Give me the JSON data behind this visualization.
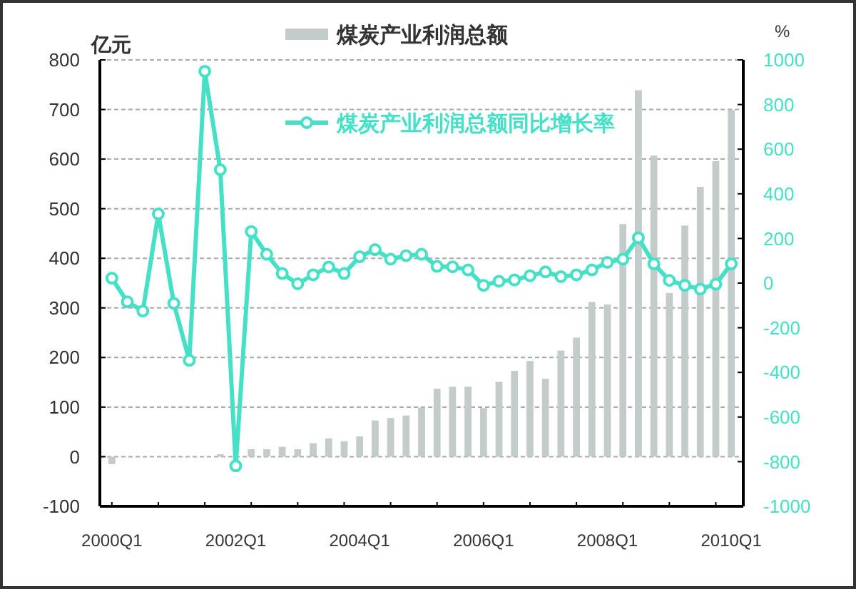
{
  "chart_data": {
    "type": "bar",
    "ylabel": "亿元",
    "y2label": "%",
    "categories": [
      "2000Q1",
      null,
      null,
      null,
      null,
      null,
      null,
      null,
      "2002Q1",
      null,
      null,
      null,
      null,
      null,
      null,
      null,
      "2004Q1",
      null,
      null,
      null,
      null,
      null,
      null,
      null,
      "2006Q1",
      null,
      null,
      null,
      null,
      null,
      null,
      null,
      "2008Q1",
      null,
      null,
      null,
      null,
      null,
      null,
      null,
      "2010Q1"
    ],
    "series": [
      {
        "name": "煤炭产业利润总额",
        "color": "#c3cbcb",
        "values": [
          -15,
          0,
          0,
          0,
          0,
          0,
          0,
          5,
          null,
          15,
          15,
          20,
          15,
          27,
          37,
          31,
          41,
          73,
          78,
          83,
          99,
          137,
          141,
          141,
          98,
          151,
          173,
          193,
          157,
          214,
          240,
          312,
          307,
          469,
          739,
          607,
          330,
          466,
          544,
          596,
          699
        ]
      },
      {
        "name": "煤炭产业利润总额同比增长率",
        "type": "line",
        "axis": "y2",
        "color": "#45e0c6",
        "marker": "circle",
        "values": [
          22,
          -84,
          -125,
          310,
          -91,
          -346,
          949,
          508,
          -819,
          231,
          129,
          43,
          -3,
          37,
          72,
          43,
          118,
          150,
          107,
          123,
          129,
          75,
          73,
          59,
          -10,
          8,
          14,
          33,
          50,
          29,
          37,
          59,
          93,
          107,
          203,
          86,
          12,
          -10,
          -27,
          -5,
          86
        ]
      }
    ],
    "ylim": [
      -100,
      800
    ],
    "yticks": [
      -100,
      0,
      100,
      200,
      300,
      400,
      500,
      600,
      700,
      800
    ],
    "y2lim": [
      -1000,
      1000
    ],
    "y2ticks": [
      -1000,
      -800,
      -600,
      -400,
      -200,
      0,
      200,
      400,
      600,
      800,
      1000
    ],
    "grid": "y",
    "legend": "top"
  }
}
